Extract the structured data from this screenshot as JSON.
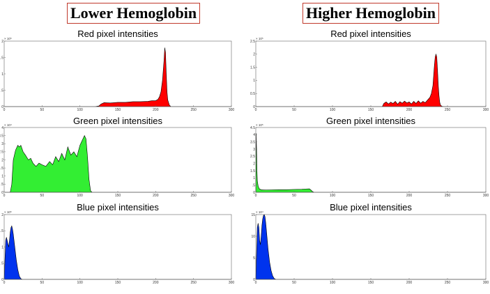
{
  "headers": {
    "left": "Lower Hemoglobin",
    "right": "Higher Hemoglobin"
  },
  "chart_data": [
    {
      "type": "area",
      "column": "left",
      "row": 0,
      "title": "Red pixel intensities",
      "color": "#ff0000",
      "xlim": [
        0,
        300
      ],
      "xticks": [
        0,
        50,
        100,
        150,
        200,
        250,
        300
      ],
      "ylim": [
        0,
        2
      ],
      "yticks": [
        0,
        0.5,
        1,
        1.5,
        2
      ],
      "ytick_labels": [
        "0",
        ".5",
        "1",
        "1.5",
        "2"
      ],
      "y_exponent": "× 10⁵",
      "x": [
        0,
        120,
        125,
        128,
        132,
        140,
        150,
        160,
        170,
        180,
        190,
        195,
        200,
        203,
        205,
        207,
        209,
        211,
        212,
        213,
        214,
        215,
        216,
        218,
        220,
        300
      ],
      "y": [
        0,
        0,
        0.02,
        0.08,
        0.12,
        0.11,
        0.13,
        0.13,
        0.15,
        0.15,
        0.16,
        0.18,
        0.18,
        0.22,
        0.3,
        0.45,
        0.8,
        1.4,
        1.8,
        1.65,
        1.0,
        0.45,
        0.2,
        0.05,
        0,
        0
      ]
    },
    {
      "type": "area",
      "column": "left",
      "row": 1,
      "title": "Green pixel intensities",
      "color": "#33ee33",
      "xlim": [
        0,
        300
      ],
      "xticks": [
        0,
        50,
        100,
        150,
        200,
        250,
        300
      ],
      "ylim": [
        0,
        4
      ],
      "yticks": [
        0,
        0.5,
        1,
        1.5,
        2,
        2.5,
        3,
        3.5,
        4
      ],
      "ytick_labels": [
        "0",
        ".5",
        "1",
        "1.5",
        "2",
        "2.5",
        "3",
        "3.5",
        "4"
      ],
      "y_exponent": "× 10⁴",
      "x": [
        0,
        8,
        10,
        12,
        15,
        18,
        20,
        22,
        25,
        28,
        32,
        35,
        38,
        42,
        46,
        50,
        55,
        60,
        64,
        68,
        72,
        76,
        80,
        84,
        88,
        92,
        96,
        100,
        103,
        106,
        108,
        110,
        112,
        114,
        116,
        300
      ],
      "y": [
        0,
        0,
        0.5,
        2.0,
        2.6,
        2.9,
        2.8,
        2.9,
        2.5,
        2.3,
        2.0,
        2.1,
        1.8,
        1.6,
        1.8,
        1.7,
        1.6,
        1.9,
        1.7,
        2.2,
        1.9,
        2.4,
        2.0,
        2.8,
        2.3,
        2.5,
        2.2,
        2.9,
        3.2,
        3.5,
        3.3,
        2.2,
        0.8,
        0.1,
        0,
        0
      ]
    },
    {
      "type": "area",
      "column": "left",
      "row": 2,
      "title": "Blue pixel intensities",
      "color": "#0033ee",
      "xlim": [
        0,
        300
      ],
      "xticks": [
        0,
        50,
        100,
        150,
        200,
        250,
        300
      ],
      "ylim": [
        0,
        2
      ],
      "yticks": [
        0,
        0.5,
        1,
        1.5,
        2
      ],
      "ytick_labels": [
        "0",
        ".5",
        "1",
        "1.5",
        "2"
      ],
      "y_exponent": "× 10⁵",
      "x": [
        0,
        1,
        2,
        3,
        4,
        5,
        6,
        7,
        8,
        9,
        10,
        11,
        12,
        14,
        16,
        18,
        20,
        22,
        24,
        300
      ],
      "y": [
        0,
        0.6,
        1.2,
        1.3,
        1.2,
        1.1,
        1.0,
        1.2,
        1.45,
        1.6,
        1.65,
        1.55,
        1.4,
        1.0,
        0.6,
        0.3,
        0.1,
        0.02,
        0,
        0
      ]
    },
    {
      "type": "area",
      "column": "right",
      "row": 0,
      "title": "Red pixel intensities",
      "color": "#ff0000",
      "xlim": [
        0,
        300
      ],
      "xticks": [
        0,
        50,
        100,
        150,
        200,
        250,
        300
      ],
      "ylim": [
        0,
        2.5
      ],
      "yticks": [
        0,
        0.5,
        1,
        1.5,
        2,
        2.5
      ],
      "ytick_labels": [
        "0",
        "0.5",
        "1",
        "1.5",
        "2",
        "2.5"
      ],
      "y_exponent": "× 10⁵",
      "x": [
        0,
        165,
        167,
        170,
        173,
        176,
        179,
        182,
        185,
        188,
        191,
        194,
        197,
        200,
        203,
        206,
        209,
        212,
        215,
        218,
        221,
        224,
        227,
        229,
        231,
        232,
        233,
        234,
        235,
        236,
        237,
        238,
        239,
        240,
        241,
        243,
        245,
        300
      ],
      "y": [
        0,
        0,
        0.12,
        0.18,
        0.1,
        0.17,
        0.12,
        0.2,
        0.09,
        0.19,
        0.13,
        0.21,
        0.14,
        0.18,
        0.1,
        0.2,
        0.12,
        0.22,
        0.13,
        0.2,
        0.15,
        0.25,
        0.35,
        0.5,
        0.8,
        1.2,
        1.6,
        1.9,
        2.0,
        1.9,
        1.4,
        0.8,
        0.4,
        0.15,
        0.05,
        0.01,
        0,
        0
      ]
    },
    {
      "type": "area",
      "column": "right",
      "row": 1,
      "title": "Green pixel intensities",
      "color": "#33ee33",
      "xlim": [
        0,
        300
      ],
      "xticks": [
        0,
        50,
        100,
        150,
        200,
        250,
        300
      ],
      "ylim": [
        0,
        4.5
      ],
      "yticks": [
        0,
        0.5,
        1,
        1.5,
        2,
        2.5,
        3,
        3.5,
        4,
        4.5
      ],
      "ytick_labels": [
        "0",
        ".5",
        "1",
        "1.5",
        "2",
        "2.5",
        "3",
        "3.5",
        "4",
        "4.5"
      ],
      "y_exponent": "× 10⁵",
      "x": [
        0,
        0.5,
        1,
        1.5,
        2,
        3,
        4,
        5,
        7,
        10,
        20,
        30,
        40,
        50,
        60,
        65,
        70,
        72,
        74,
        76,
        300
      ],
      "y": [
        0,
        4.1,
        3.0,
        1.5,
        0.8,
        0.45,
        0.3,
        0.22,
        0.18,
        0.16,
        0.17,
        0.18,
        0.18,
        0.2,
        0.21,
        0.23,
        0.24,
        0.15,
        0.05,
        0,
        0
      ]
    },
    {
      "type": "area",
      "column": "right",
      "row": 2,
      "title": "Blue pixel intensities",
      "color": "#0033ee",
      "xlim": [
        0,
        300
      ],
      "xticks": [
        0,
        50,
        100,
        150,
        200,
        250,
        300
      ],
      "ylim": [
        0,
        15
      ],
      "yticks": [
        0,
        5,
        10,
        15
      ],
      "ytick_labels": [
        "0",
        "5",
        "10",
        "15"
      ],
      "y_exponent": "× 10⁴",
      "x": [
        0,
        1,
        2,
        3,
        4,
        5,
        6,
        7,
        8,
        9,
        10,
        11,
        12,
        13,
        14,
        16,
        18,
        20,
        22,
        24,
        26,
        28,
        300
      ],
      "y": [
        0,
        6,
        12,
        13,
        12,
        9,
        8,
        10,
        12.5,
        14,
        14.8,
        15,
        14.5,
        13,
        11,
        7,
        4,
        2,
        0.8,
        0.2,
        0.02,
        0,
        0
      ]
    }
  ]
}
